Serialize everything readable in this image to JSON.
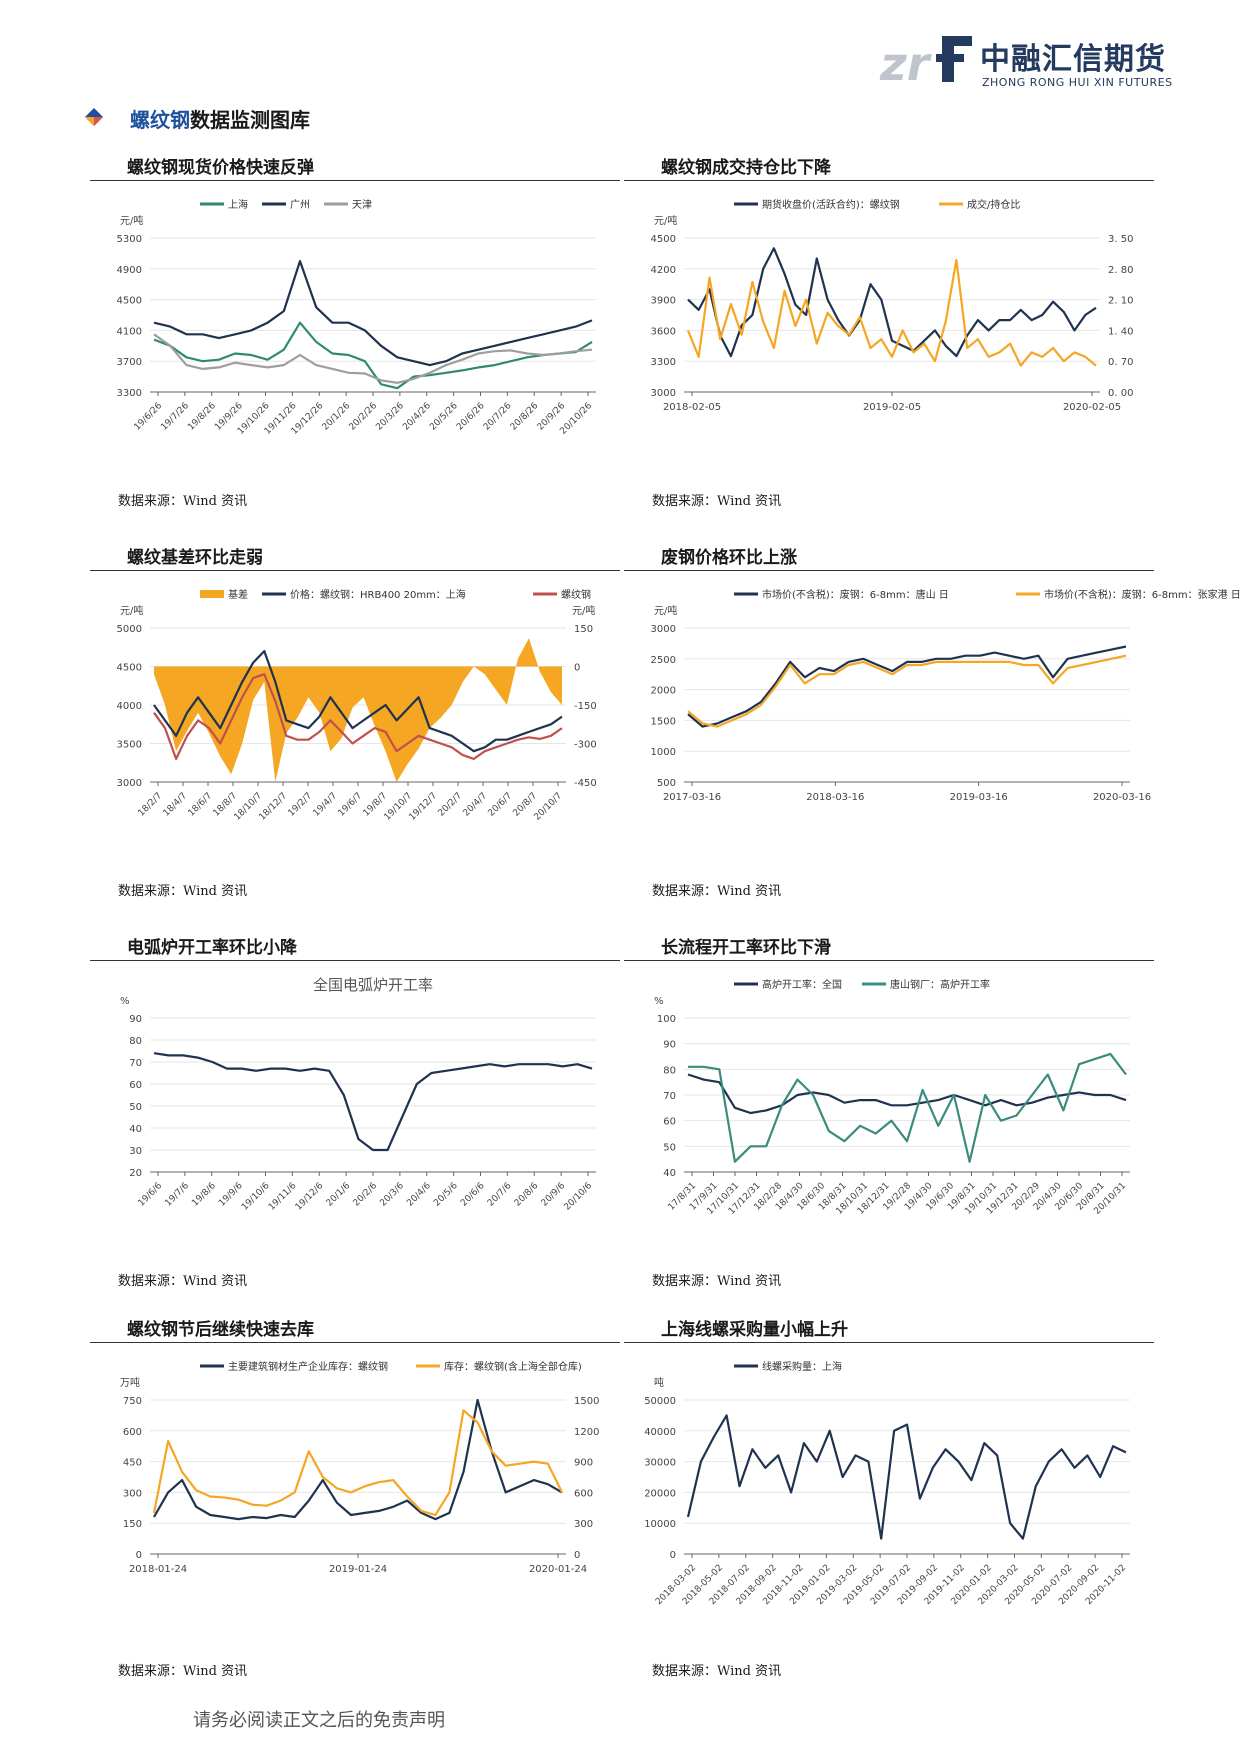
{
  "header": {
    "logo_cn": "中融汇信期货",
    "logo_en": "ZHONG RONG HUI XIN FUTURES",
    "brand_color": "#243a5e",
    "accent_color": "#c0c4cc"
  },
  "section": {
    "highlight": "螺纹钢",
    "rest": "数据监测图库",
    "icon": "diamond-bullet-icon"
  },
  "footer": {
    "text": "请务必阅读正文之后的免责声明"
  },
  "panels": [
    {
      "title": "螺纹钢现货价格快速反弹",
      "source": "数据来源：Wind 资讯",
      "chart_data": {
        "type": "line",
        "ylabel_left": "元/吨",
        "ylim": [
          3300,
          5300
        ],
        "yticks": [
          "5300",
          "4900",
          "4500",
          "4100",
          "3700",
          "3300"
        ],
        "xticks": [
          "19/6/26",
          "19/7/26",
          "19/8/26",
          "19/9/26",
          "19/10/26",
          "19/11/26",
          "19/12/26",
          "20/1/26",
          "20/2/26",
          "20/3/26",
          "20/4/26",
          "20/5/26",
          "20/6/26",
          "20/7/26",
          "20/8/26",
          "20/9/26",
          "20/10/26"
        ],
        "legend": "top",
        "series": [
          {
            "name": "上海",
            "color": "#2e8b6e",
            "values": [
              3980,
              3900,
              3750,
              3700,
              3720,
              3800,
              3780,
              3720,
              3850,
              4200,
              3950,
              3800,
              3780,
              3700,
              3400,
              3350,
              3500,
              3520,
              3550,
              3580,
              3620,
              3650,
              3700,
              3750,
              3780,
              3800,
              3820,
              3950
            ]
          },
          {
            "name": "广州",
            "color": "#1f3350",
            "values": [
              4200,
              4150,
              4050,
              4050,
              4000,
              4050,
              4100,
              4200,
              4350,
              5000,
              4400,
              4200,
              4200,
              4100,
              3900,
              3750,
              3700,
              3650,
              3700,
              3800,
              3850,
              3900,
              3950,
              4000,
              4050,
              4100,
              4150,
              4230
            ]
          },
          {
            "name": "天津",
            "color": "#9e9e9e",
            "values": [
              4050,
              3900,
              3650,
              3600,
              3620,
              3680,
              3650,
              3620,
              3650,
              3780,
              3650,
              3600,
              3550,
              3540,
              3450,
              3420,
              3470,
              3550,
              3650,
              3720,
              3800,
              3830,
              3840,
              3800,
              3780,
              3800,
              3830,
              3850
            ]
          }
        ]
      }
    },
    {
      "title": "螺纹钢成交持仓比下降",
      "source": "数据来源：Wind 资讯",
      "chart_data": {
        "type": "line",
        "ylabel_left": "元/吨",
        "ylim": [
          3000,
          4500
        ],
        "ylim_right": [
          0,
          3.5
        ],
        "yticks": [
          "4500",
          "4200",
          "3900",
          "3600",
          "3300",
          "3000"
        ],
        "yticks_right": [
          "3. 50",
          "2. 80",
          "2. 10",
          "1. 40",
          "0. 70",
          "0. 00"
        ],
        "xticks": [
          "2018-02-05",
          "2019-02-05",
          "2020-02-05"
        ],
        "legend": "top",
        "series": [
          {
            "name": "期货收盘价(活跃合约)：螺纹钢",
            "color": "#1f3350",
            "axis": "left",
            "values": [
              3900,
              3800,
              4000,
              3550,
              3350,
              3650,
              3750,
              4200,
              4400,
              4150,
              3850,
              3750,
              4300,
              3900,
              3700,
              3550,
              3700,
              4050,
              3900,
              3500,
              3450,
              3400,
              3500,
              3600,
              3450,
              3350,
              3550,
              3700,
              3600,
              3700,
              3700,
              3800,
              3700,
              3750,
              3880,
              3780,
              3600,
              3750,
              3820
            ]
          },
          {
            "name": "成交/持仓比",
            "color": "#f5a623",
            "axis": "right",
            "values": [
              1.4,
              0.8,
              2.6,
              1.2,
              2.0,
              1.3,
              2.5,
              1.6,
              1.0,
              2.3,
              1.5,
              2.1,
              1.1,
              1.8,
              1.5,
              1.3,
              1.7,
              1.0,
              1.2,
              0.8,
              1.4,
              0.9,
              1.1,
              0.7,
              1.6,
              3.0,
              1.0,
              1.2,
              0.8,
              0.9,
              1.1,
              0.6,
              0.9,
              0.8,
              1.0,
              0.7,
              0.9,
              0.8,
              0.6
            ]
          }
        ]
      }
    },
    {
      "title": "螺纹基差环比走弱",
      "source": "数据来源：Wind 资讯",
      "chart_data": {
        "type": "area",
        "ylabel_left": "元/吨",
        "ylabel_right": "元/吨",
        "ylim": [
          3000,
          5000
        ],
        "ylim_right": [
          -450,
          150
        ],
        "yticks": [
          "5000",
          "4500",
          "4000",
          "3500",
          "3000"
        ],
        "yticks_right": [
          "150",
          "0",
          "-150",
          "-300",
          "-450"
        ],
        "xticks": [
          "18/2/7",
          "18/4/7",
          "18/6/7",
          "18/8/7",
          "18/10/7",
          "18/12/7",
          "19/2/7",
          "19/4/7",
          "19/6/7",
          "19/8/7",
          "19/10/7",
          "19/12/7",
          "20/2/7",
          "20/4/7",
          "20/6/7",
          "20/8/7",
          "20/10/7"
        ],
        "legend": "top",
        "series": [
          {
            "name": "基差",
            "color": "#f5a623",
            "axis": "right",
            "kind": "area",
            "values": [
              -30,
              -150,
              -330,
              -250,
              -180,
              -260,
              -350,
              -420,
              -300,
              -130,
              -60,
              -450,
              -260,
              -200,
              -120,
              -180,
              -330,
              -280,
              -160,
              -120,
              -230,
              -330,
              -450,
              -380,
              -320,
              -240,
              -200,
              -150,
              -60,
              0,
              -30,
              -90,
              -150,
              30,
              110,
              -20,
              -100,
              -150
            ]
          },
          {
            "name": "价格：螺纹钢：HRB400 20mm：上海",
            "color": "#1f3350",
            "axis": "left",
            "kind": "line",
            "values": [
              4000,
              3800,
              3600,
              3900,
              4100,
              3900,
              3700,
              4000,
              4300,
              4550,
              4700,
              4300,
              3800,
              3750,
              3700,
              3850,
              4100,
              3900,
              3700,
              3800,
              3900,
              4000,
              3800,
              3950,
              4100,
              3700,
              3650,
              3600,
              3500,
              3400,
              3450,
              3550,
              3550,
              3600,
              3650,
              3700,
              3750,
              3850
            ]
          },
          {
            "name": "螺纹钢",
            "color": "#c0504d",
            "axis": "left",
            "kind": "line",
            "values": [
              3900,
              3700,
              3300,
              3600,
              3800,
              3700,
              3500,
              3800,
              4100,
              4350,
              4400,
              4050,
              3600,
              3550,
              3550,
              3650,
              3800,
              3650,
              3500,
              3600,
              3700,
              3650,
              3400,
              3500,
              3600,
              3550,
              3500,
              3450,
              3350,
              3300,
              3400,
              3450,
              3500,
              3550,
              3580,
              3560,
              3600,
              3700
            ]
          }
        ]
      }
    },
    {
      "title": "废钢价格环比上涨",
      "source": "数据来源：Wind 资讯",
      "chart_data": {
        "type": "line",
        "ylabel_left": "元/吨",
        "ylim": [
          500,
          3000
        ],
        "yticks": [
          "3000",
          "2500",
          "2000",
          "1500",
          "1000",
          "500"
        ],
        "xticks": [
          "2017-03-16",
          "2018-03-16",
          "2019-03-16",
          "2020-03-16"
        ],
        "legend": "top-left",
        "series": [
          {
            "name": "市场价(不含税)：废钢：6-8mm：唐山 日",
            "color": "#1f3350",
            "values": [
              1600,
              1400,
              1450,
              1550,
              1650,
              1800,
              2100,
              2450,
              2200,
              2350,
              2300,
              2450,
              2500,
              2400,
              2300,
              2450,
              2450,
              2500,
              2500,
              2550,
              2550,
              2600,
              2550,
              2500,
              2550,
              2200,
              2500,
              2550,
              2600,
              2650,
              2700
            ]
          },
          {
            "name": "市场价(不含税)：废钢：6-8mm：张家港 日",
            "color": "#f5a623",
            "values": [
              1650,
              1450,
              1400,
              1500,
              1600,
              1750,
              2050,
              2400,
              2100,
              2250,
              2250,
              2400,
              2450,
              2350,
              2250,
              2400,
              2400,
              2450,
              2450,
              2450,
              2450,
              2450,
              2450,
              2400,
              2400,
              2100,
              2350,
              2400,
              2450,
              2500,
              2550
            ]
          }
        ]
      }
    },
    {
      "title": "电弧炉开工率环比小降",
      "source": "数据来源：Wind 资讯",
      "chart_data": {
        "type": "line",
        "title": "全国电弧炉开工率",
        "ylabel_left": "%",
        "ylim": [
          20,
          90
        ],
        "yticks": [
          "90",
          "80",
          "70",
          "60",
          "50",
          "40",
          "30",
          "20"
        ],
        "xticks": [
          "19/6/6",
          "19/7/6",
          "19/8/6",
          "19/9/6",
          "19/10/6",
          "19/11/6",
          "19/12/6",
          "20/1/6",
          "20/2/6",
          "20/3/6",
          "20/4/6",
          "20/5/6",
          "20/6/6",
          "20/7/6",
          "20/8/6",
          "20/9/6",
          "20/10/6"
        ],
        "series": [
          {
            "name": "",
            "color": "#1f3350",
            "values": [
              74,
              73,
              73,
              72,
              70,
              67,
              67,
              66,
              67,
              67,
              66,
              67,
              66,
              55,
              35,
              30,
              30,
              45,
              60,
              65,
              66,
              67,
              68,
              69,
              68,
              69,
              69,
              69,
              68,
              69,
              67
            ]
          }
        ]
      }
    },
    {
      "title": "长流程开工率环比下滑",
      "source": "数据来源：Wind 资讯",
      "chart_data": {
        "type": "line",
        "ylabel_left": "%",
        "ylim": [
          40,
          100
        ],
        "yticks": [
          "100",
          "90",
          "80",
          "70",
          "60",
          "50",
          "40"
        ],
        "xticks": [
          "17/8/31",
          "17/9/31",
          "17/10/31",
          "17/12/31",
          "18/2/28",
          "18/4/30",
          "18/6/30",
          "18/8/31",
          "18/10/31",
          "18/12/31",
          "19/2/28",
          "19/4/30",
          "19/6/30",
          "19/8/31",
          "19/10/31",
          "19/12/31",
          "20/2/29",
          "20/4/30",
          "20/6/30",
          "20/8/31",
          "20/10/31"
        ],
        "legend": "top",
        "series": [
          {
            "name": "高炉开工率：全国",
            "color": "#1f3350",
            "values": [
              78,
              76,
              75,
              65,
              63,
              64,
              66,
              70,
              71,
              70,
              67,
              68,
              68,
              66,
              66,
              67,
              68,
              70,
              68,
              66,
              68,
              66,
              67,
              69,
              70,
              71,
              70,
              70,
              68
            ]
          },
          {
            "name": "唐山钢厂：高炉开工率",
            "color": "#3a8c7c",
            "values": [
              81,
              81,
              80,
              44,
              50,
              50,
              66,
              76,
              70,
              56,
              52,
              58,
              55,
              60,
              52,
              72,
              58,
              70,
              44,
              70,
              60,
              62,
              70,
              78,
              64,
              82,
              84,
              86,
              78
            ]
          }
        ]
      }
    },
    {
      "title": "螺纹钢节后继续快速去库",
      "source": "数据来源：Wind 资讯",
      "chart_data": {
        "type": "line",
        "ylabel_left": "万吨",
        "ylim": [
          0,
          750
        ],
        "ylim_right": [
          0,
          1500
        ],
        "yticks": [
          "750",
          "600",
          "450",
          "300",
          "150",
          "0"
        ],
        "yticks_right": [
          "1500",
          "1200",
          "900",
          "600",
          "300",
          "0"
        ],
        "xticks": [
          "2018-01-24",
          "2019-01-24",
          "2020-01-24"
        ],
        "legend": "top",
        "series": [
          {
            "name": "主要建筑钢材生产企业库存：螺纹钢",
            "color": "#1f3350",
            "axis": "left",
            "values": [
              180,
              300,
              360,
              230,
              190,
              180,
              170,
              180,
              175,
              190,
              180,
              260,
              360,
              250,
              190,
              200,
              210,
              230,
              260,
              200,
              170,
              200,
              400,
              750,
              500,
              300,
              330,
              360,
              340,
              300
            ]
          },
          {
            "name": "库存：螺纹钢(含上海全部仓库)",
            "color": "#f5a623",
            "axis": "right",
            "values": [
              400,
              1100,
              800,
              620,
              560,
              550,
              530,
              480,
              470,
              520,
              600,
              1000,
              750,
              640,
              600,
              660,
              700,
              720,
              560,
              420,
              380,
              600,
              1400,
              1280,
              1000,
              860,
              880,
              900,
              880,
              600
            ]
          }
        ]
      }
    },
    {
      "title": "上海线螺采购量小幅上升",
      "source": "数据来源：Wind 资讯",
      "chart_data": {
        "type": "line",
        "ylabel_left": "吨",
        "ylim": [
          0,
          50000
        ],
        "yticks": [
          "50000",
          "40000",
          "30000",
          "20000",
          "10000",
          "0"
        ],
        "xticks": [
          "2018-03-02",
          "2018-05-02",
          "2018-07-02",
          "2018-09-02",
          "2018-11-02",
          "2019-01-02",
          "2019-03-02",
          "2019-05-02",
          "2019-07-02",
          "2019-09-02",
          "2019-11-02",
          "2020-01-02",
          "2020-03-02",
          "2020-05-02",
          "2020-07-02",
          "2020-09-02",
          "2020-11-02"
        ],
        "legend": "top",
        "series": [
          {
            "name": "线螺采购量：上海",
            "color": "#1f3350",
            "values": [
              12000,
              30000,
              38000,
              45000,
              22000,
              34000,
              28000,
              32000,
              20000,
              36000,
              30000,
              40000,
              25000,
              32000,
              30000,
              5000,
              40000,
              42000,
              18000,
              28000,
              34000,
              30000,
              24000,
              36000,
              32000,
              10000,
              5000,
              22000,
              30000,
              34000,
              28000,
              32000,
              25000,
              35000,
              33000
            ]
          }
        ]
      }
    }
  ]
}
